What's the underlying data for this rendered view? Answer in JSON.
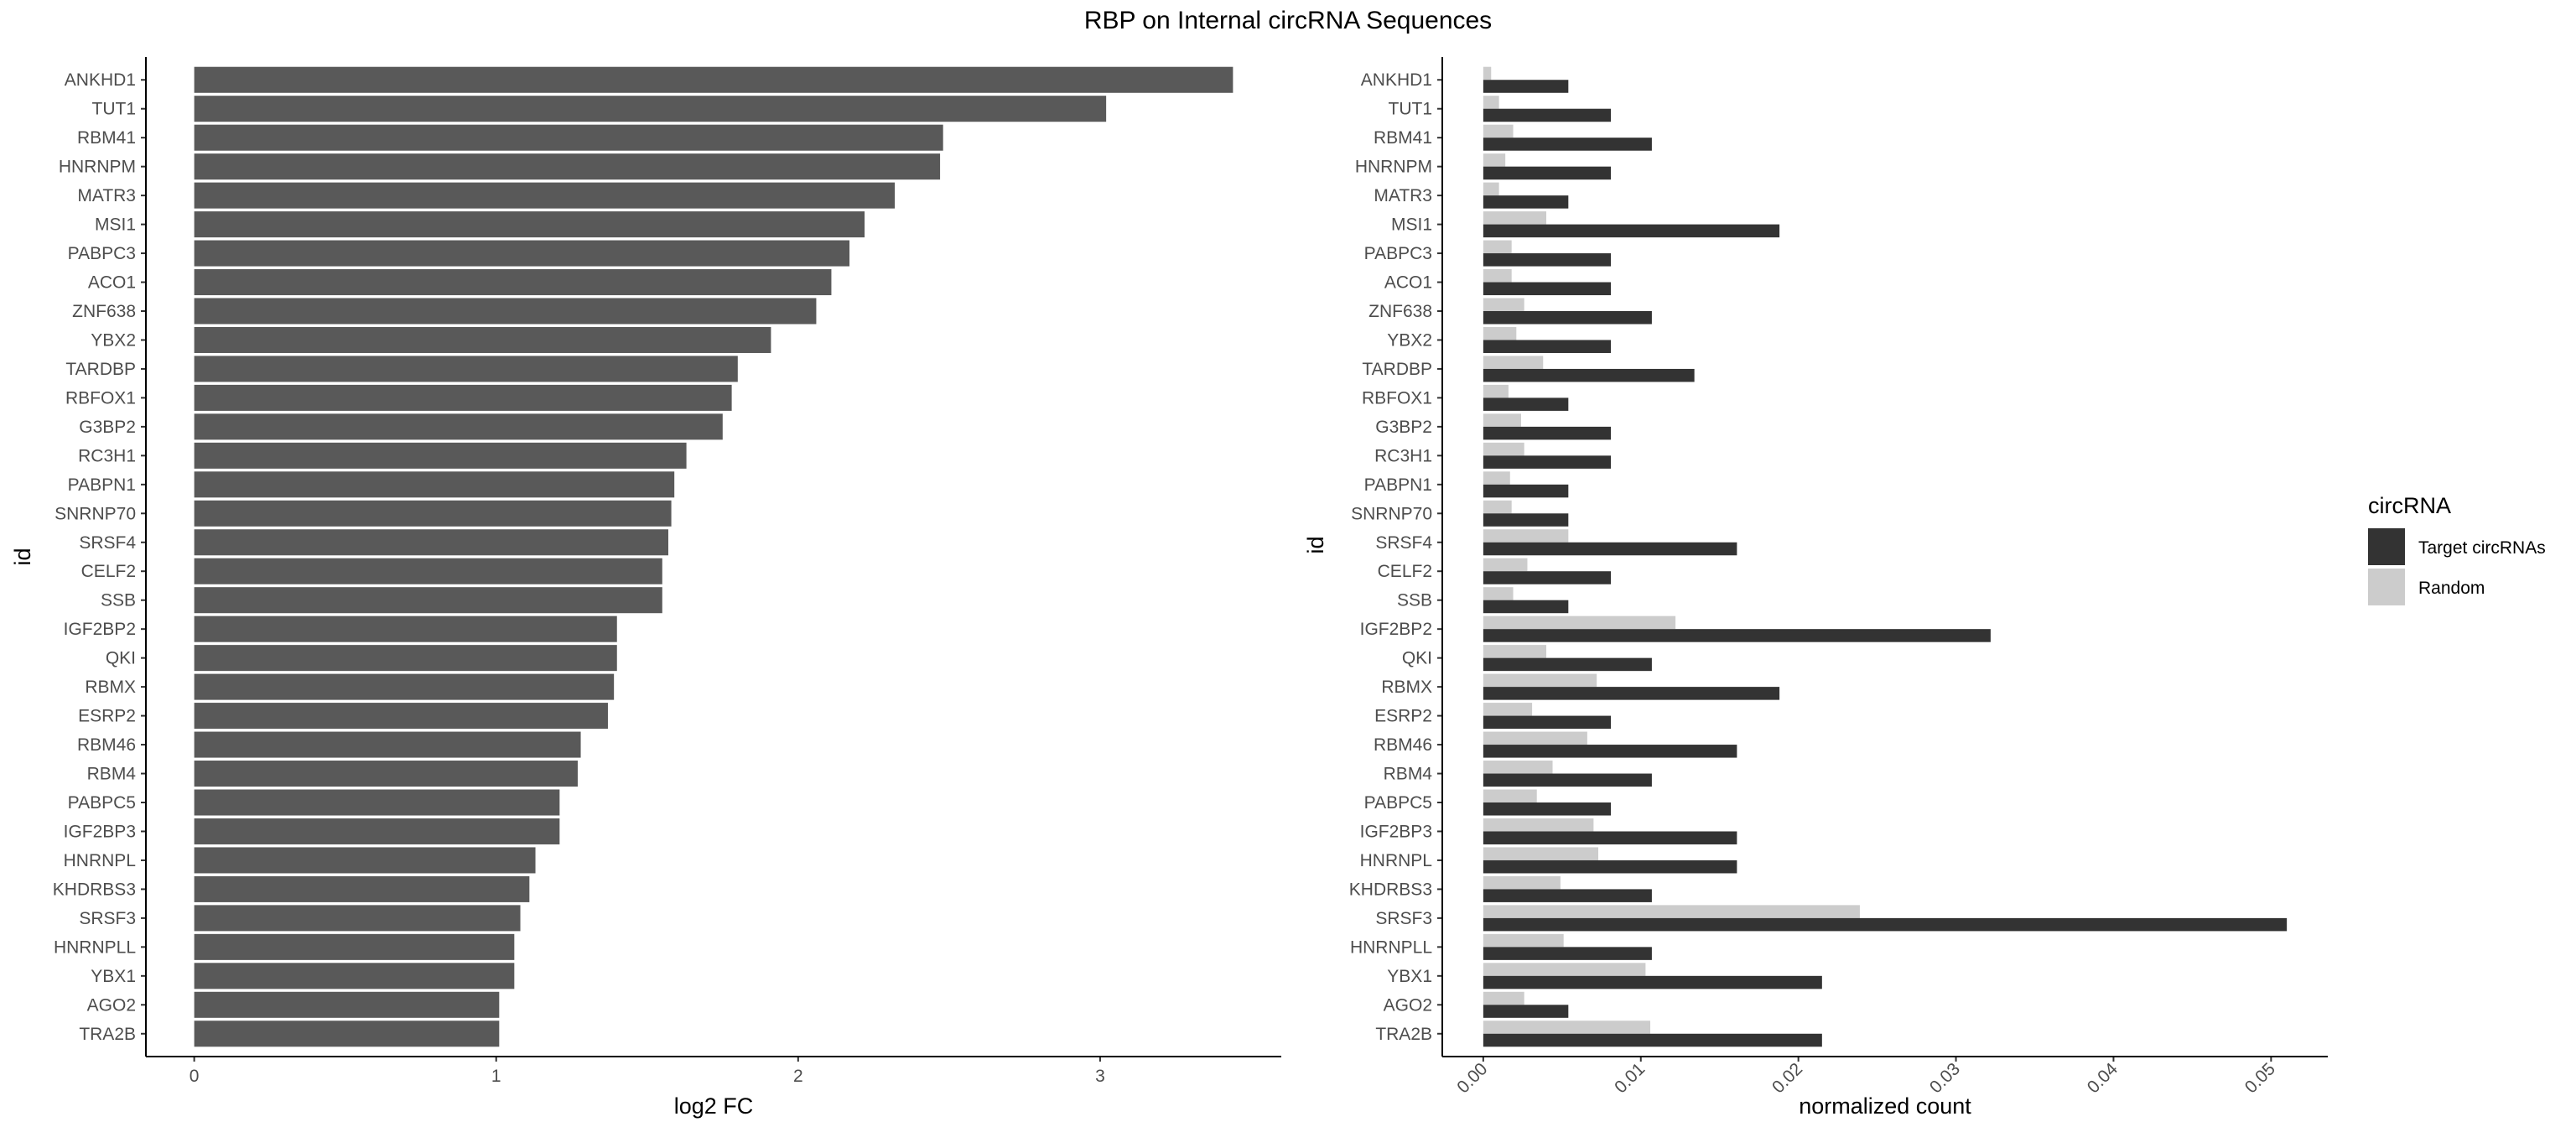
{
  "title": "RBP on Internal circRNA Sequences",
  "colors": {
    "fc_bar": "#595959",
    "target": "#333333",
    "random": "#cccccc",
    "axis": "#000000",
    "tick_text": "#4d4d4d"
  },
  "chart_data": [
    {
      "type": "bar",
      "orientation": "horizontal",
      "ylabel": "id",
      "xlabel": "log2 FC",
      "xlim": [
        -0.16,
        3.6
      ],
      "xticks": [
        0,
        1,
        2,
        3
      ],
      "categories": [
        "ANKHD1",
        "TUT1",
        "RBM41",
        "HNRNPM",
        "MATR3",
        "MSI1",
        "PABPC3",
        "ACO1",
        "ZNF638",
        "YBX2",
        "TARDBP",
        "RBFOX1",
        "G3BP2",
        "RC3H1",
        "PABPN1",
        "SNRNP70",
        "SRSF4",
        "CELF2",
        "SSB",
        "IGF2BP2",
        "QKI",
        "RBMX",
        "ESRP2",
        "RBM46",
        "RBM4",
        "PABPC5",
        "IGF2BP3",
        "HNRNPL",
        "KHDRBS3",
        "SRSF3",
        "HNRNPLL",
        "YBX1",
        "AGO2",
        "TRA2B"
      ],
      "values": [
        3.44,
        3.02,
        2.48,
        2.47,
        2.32,
        2.22,
        2.17,
        2.11,
        2.06,
        1.91,
        1.8,
        1.78,
        1.75,
        1.63,
        1.59,
        1.58,
        1.57,
        1.55,
        1.55,
        1.4,
        1.4,
        1.39,
        1.37,
        1.28,
        1.27,
        1.21,
        1.21,
        1.13,
        1.11,
        1.08,
        1.06,
        1.06,
        1.01,
        1.01
      ]
    },
    {
      "type": "bar",
      "orientation": "horizontal",
      "grouped": true,
      "ylabel": "id",
      "xlabel": "normalized count",
      "xlim": [
        -0.0026,
        0.0536
      ],
      "xticks": [
        0.0,
        0.01,
        0.02,
        0.03,
        0.04,
        0.05
      ],
      "xtick_labels": [
        "0.00",
        "0.01",
        "0.02",
        "0.03",
        "0.04",
        "0.05"
      ],
      "categories": [
        "ANKHD1",
        "TUT1",
        "RBM41",
        "HNRNPM",
        "MATR3",
        "MSI1",
        "PABPC3",
        "ACO1",
        "ZNF638",
        "YBX2",
        "TARDBP",
        "RBFOX1",
        "G3BP2",
        "RC3H1",
        "PABPN1",
        "SNRNP70",
        "SRSF4",
        "CELF2",
        "SSB",
        "IGF2BP2",
        "QKI",
        "RBMX",
        "ESRP2",
        "RBM46",
        "RBM4",
        "PABPC5",
        "IGF2BP3",
        "HNRNPL",
        "KHDRBS3",
        "SRSF3",
        "HNRNPLL",
        "YBX1",
        "AGO2",
        "TRA2B"
      ],
      "legend": {
        "title": "circRNA",
        "position": "right"
      },
      "series": [
        {
          "name": "Target circRNAs",
          "color": "#333333",
          "values": [
            0.0054,
            0.0081,
            0.0107,
            0.0081,
            0.0054,
            0.0188,
            0.0081,
            0.0081,
            0.0107,
            0.0081,
            0.0134,
            0.0054,
            0.0081,
            0.0081,
            0.0054,
            0.0054,
            0.0161,
            0.0081,
            0.0054,
            0.0322,
            0.0107,
            0.0188,
            0.0081,
            0.0161,
            0.0107,
            0.0081,
            0.0161,
            0.0161,
            0.0107,
            0.051,
            0.0107,
            0.0215,
            0.0054,
            0.0215
          ]
        },
        {
          "name": "Random",
          "color": "#cccccc",
          "values": [
            0.0005,
            0.001,
            0.0019,
            0.0014,
            0.001,
            0.004,
            0.0018,
            0.0018,
            0.0026,
            0.0021,
            0.0038,
            0.0016,
            0.0024,
            0.0026,
            0.0017,
            0.0018,
            0.0054,
            0.0028,
            0.0019,
            0.0122,
            0.004,
            0.0072,
            0.0031,
            0.0066,
            0.0044,
            0.0034,
            0.007,
            0.0073,
            0.0049,
            0.0239,
            0.0051,
            0.0103,
            0.0026,
            0.0106
          ]
        }
      ]
    }
  ]
}
